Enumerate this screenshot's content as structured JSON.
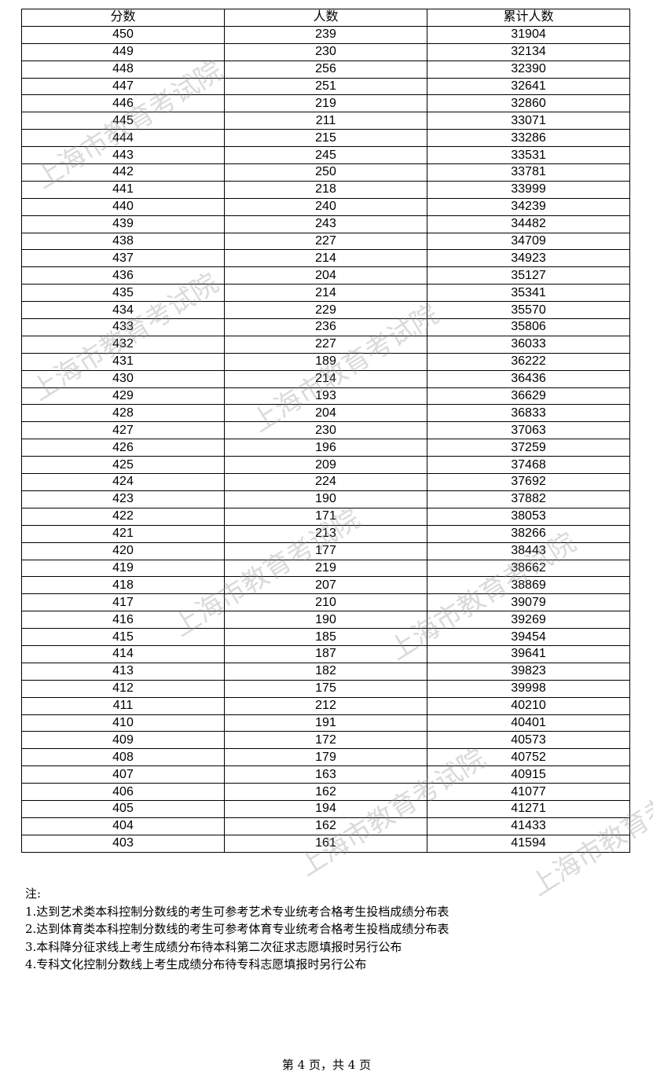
{
  "table": {
    "headers": [
      "分数",
      "人数",
      "累计人数"
    ],
    "rows": [
      [
        "450",
        "239",
        "31904"
      ],
      [
        "449",
        "230",
        "32134"
      ],
      [
        "448",
        "256",
        "32390"
      ],
      [
        "447",
        "251",
        "32641"
      ],
      [
        "446",
        "219",
        "32860"
      ],
      [
        "445",
        "211",
        "33071"
      ],
      [
        "444",
        "215",
        "33286"
      ],
      [
        "443",
        "245",
        "33531"
      ],
      [
        "442",
        "250",
        "33781"
      ],
      [
        "441",
        "218",
        "33999"
      ],
      [
        "440",
        "240",
        "34239"
      ],
      [
        "439",
        "243",
        "34482"
      ],
      [
        "438",
        "227",
        "34709"
      ],
      [
        "437",
        "214",
        "34923"
      ],
      [
        "436",
        "204",
        "35127"
      ],
      [
        "435",
        "214",
        "35341"
      ],
      [
        "434",
        "229",
        "35570"
      ],
      [
        "433",
        "236",
        "35806"
      ],
      [
        "432",
        "227",
        "36033"
      ],
      [
        "431",
        "189",
        "36222"
      ],
      [
        "430",
        "214",
        "36436"
      ],
      [
        "429",
        "193",
        "36629"
      ],
      [
        "428",
        "204",
        "36833"
      ],
      [
        "427",
        "230",
        "37063"
      ],
      [
        "426",
        "196",
        "37259"
      ],
      [
        "425",
        "209",
        "37468"
      ],
      [
        "424",
        "224",
        "37692"
      ],
      [
        "423",
        "190",
        "37882"
      ],
      [
        "422",
        "171",
        "38053"
      ],
      [
        "421",
        "213",
        "38266"
      ],
      [
        "420",
        "177",
        "38443"
      ],
      [
        "419",
        "219",
        "38662"
      ],
      [
        "418",
        "207",
        "38869"
      ],
      [
        "417",
        "210",
        "39079"
      ],
      [
        "416",
        "190",
        "39269"
      ],
      [
        "415",
        "185",
        "39454"
      ],
      [
        "414",
        "187",
        "39641"
      ],
      [
        "413",
        "182",
        "39823"
      ],
      [
        "412",
        "175",
        "39998"
      ],
      [
        "411",
        "212",
        "40210"
      ],
      [
        "410",
        "191",
        "40401"
      ],
      [
        "409",
        "172",
        "40573"
      ],
      [
        "408",
        "179",
        "40752"
      ],
      [
        "407",
        "163",
        "40915"
      ],
      [
        "406",
        "162",
        "41077"
      ],
      [
        "405",
        "194",
        "41271"
      ],
      [
        "404",
        "162",
        "41433"
      ],
      [
        "403",
        "161",
        "41594"
      ]
    ]
  },
  "notes": {
    "title": "注:",
    "items": [
      "1.达到艺术类本科控制分数线的考生可参考艺术专业统考合格考生投档成绩分布表",
      "2.达到体育类本科控制分数线的考生可参考体育专业统考合格考生投档成绩分布表",
      "3.本科降分征求线上考生成绩分布待本科第二次征求志愿填报时另行公布",
      "4.专科文化控制分数线上考生成绩分布待专科志愿填报时另行公布"
    ]
  },
  "footer": {
    "page_label": "第 4 页，共 4 页"
  },
  "watermark": "上海市教育考试院"
}
